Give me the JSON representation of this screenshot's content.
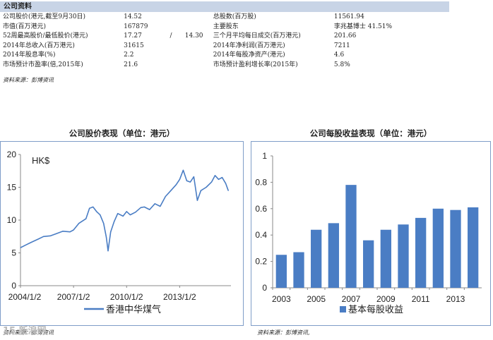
{
  "info": {
    "header": "公司资料",
    "rows": [
      [
        "公司股价(港元,截至9月30日)",
        "14.52",
        "",
        "",
        "总股数(百万股)",
        "11561.94"
      ],
      [
        "市值(百万港元)",
        "167879",
        "",
        "",
        "主要股东",
        "李兆基博士 41.51%"
      ],
      [
        "52周最高股价/最低股价(港元)",
        "17.27",
        "/",
        "14.30",
        "三个月平均每日成交(百万港元)",
        "201.66"
      ],
      [
        "2014年总收入(百万港元)",
        "31615",
        "",
        "",
        "2014年净利润(百万港元)",
        "7211"
      ],
      [
        "2014年股息率(%)",
        "2.2",
        "",
        "",
        "2014年每股净资产(港元)",
        "4.6"
      ],
      [
        "市场预计市盈率(倍,2015年)",
        "21.6",
        "",
        "",
        "市场预计盈利增长率(2015年)",
        "5.8%"
      ]
    ],
    "source": "资料来源：彭博资讯"
  },
  "footer": {
    "left_source": "资料来源：彭博资讯",
    "right_source": "资料来源：彭博资讯,",
    "watermark": "15 新浪网"
  },
  "chart_data": [
    {
      "type": "line",
      "title": "公司股价表现（单位：港元）",
      "unit_label": "HK$",
      "ylim": [
        0,
        20
      ],
      "yticks": [
        0,
        5,
        10,
        15,
        20
      ],
      "x_tick_labels": [
        "2004/1/2",
        "2007/1/2",
        "2010/1/2",
        "2013/1/2"
      ],
      "grid": false,
      "legend_position": "bottom",
      "color": "#4a7dc4",
      "series": [
        {
          "name": "香港中华煤气",
          "x": [
            2004.0,
            2004.3,
            2004.6,
            2005.0,
            2005.3,
            2005.7,
            2006.0,
            2006.4,
            2006.8,
            2007.0,
            2007.3,
            2007.7,
            2007.9,
            2008.1,
            2008.3,
            2008.5,
            2008.7,
            2008.85,
            2008.95,
            2009.1,
            2009.3,
            2009.5,
            2009.8,
            2010.0,
            2010.2,
            2010.5,
            2010.8,
            2011.0,
            2011.3,
            2011.6,
            2011.9,
            2012.2,
            2012.5,
            2012.8,
            2013.0,
            2013.2,
            2013.4,
            2013.6,
            2013.8,
            2014.0,
            2014.2,
            2014.5,
            2014.8,
            2015.0,
            2015.2,
            2015.4,
            2015.6,
            2015.75
          ],
          "values": [
            5.8,
            6.2,
            6.6,
            7.1,
            7.5,
            7.6,
            7.9,
            8.3,
            8.2,
            8.5,
            9.5,
            10.2,
            11.8,
            12.0,
            11.3,
            10.8,
            9.5,
            7.4,
            5.3,
            8.2,
            9.8,
            11.0,
            10.6,
            11.3,
            10.8,
            11.2,
            11.9,
            12.0,
            11.6,
            12.5,
            12.1,
            13.6,
            14.5,
            15.4,
            16.2,
            17.6,
            16.0,
            15.8,
            16.6,
            13.0,
            14.5,
            15.0,
            15.8,
            16.8,
            16.2,
            16.5,
            15.6,
            14.5
          ]
        }
      ]
    },
    {
      "type": "bar",
      "title": "公司每股收益表现（单位：港元）",
      "ylim": [
        0,
        1
      ],
      "yticks": [
        0,
        0.2,
        0.4,
        0.6,
        0.8,
        1
      ],
      "categories": [
        "2003",
        "2004",
        "2005",
        "2006",
        "2007",
        "2008",
        "2009",
        "2010",
        "2011",
        "2012",
        "2013",
        "2014"
      ],
      "x_tick_labels": [
        "2003",
        "2005",
        "2007",
        "2009",
        "2011",
        "2013"
      ],
      "grid": false,
      "legend_position": "bottom",
      "color": "#4a7dc4",
      "series": [
        {
          "name": "基本每股收益",
          "values": [
            0.25,
            0.27,
            0.44,
            0.49,
            0.78,
            0.36,
            0.44,
            0.48,
            0.53,
            0.6,
            0.59,
            0.61
          ]
        }
      ]
    }
  ]
}
